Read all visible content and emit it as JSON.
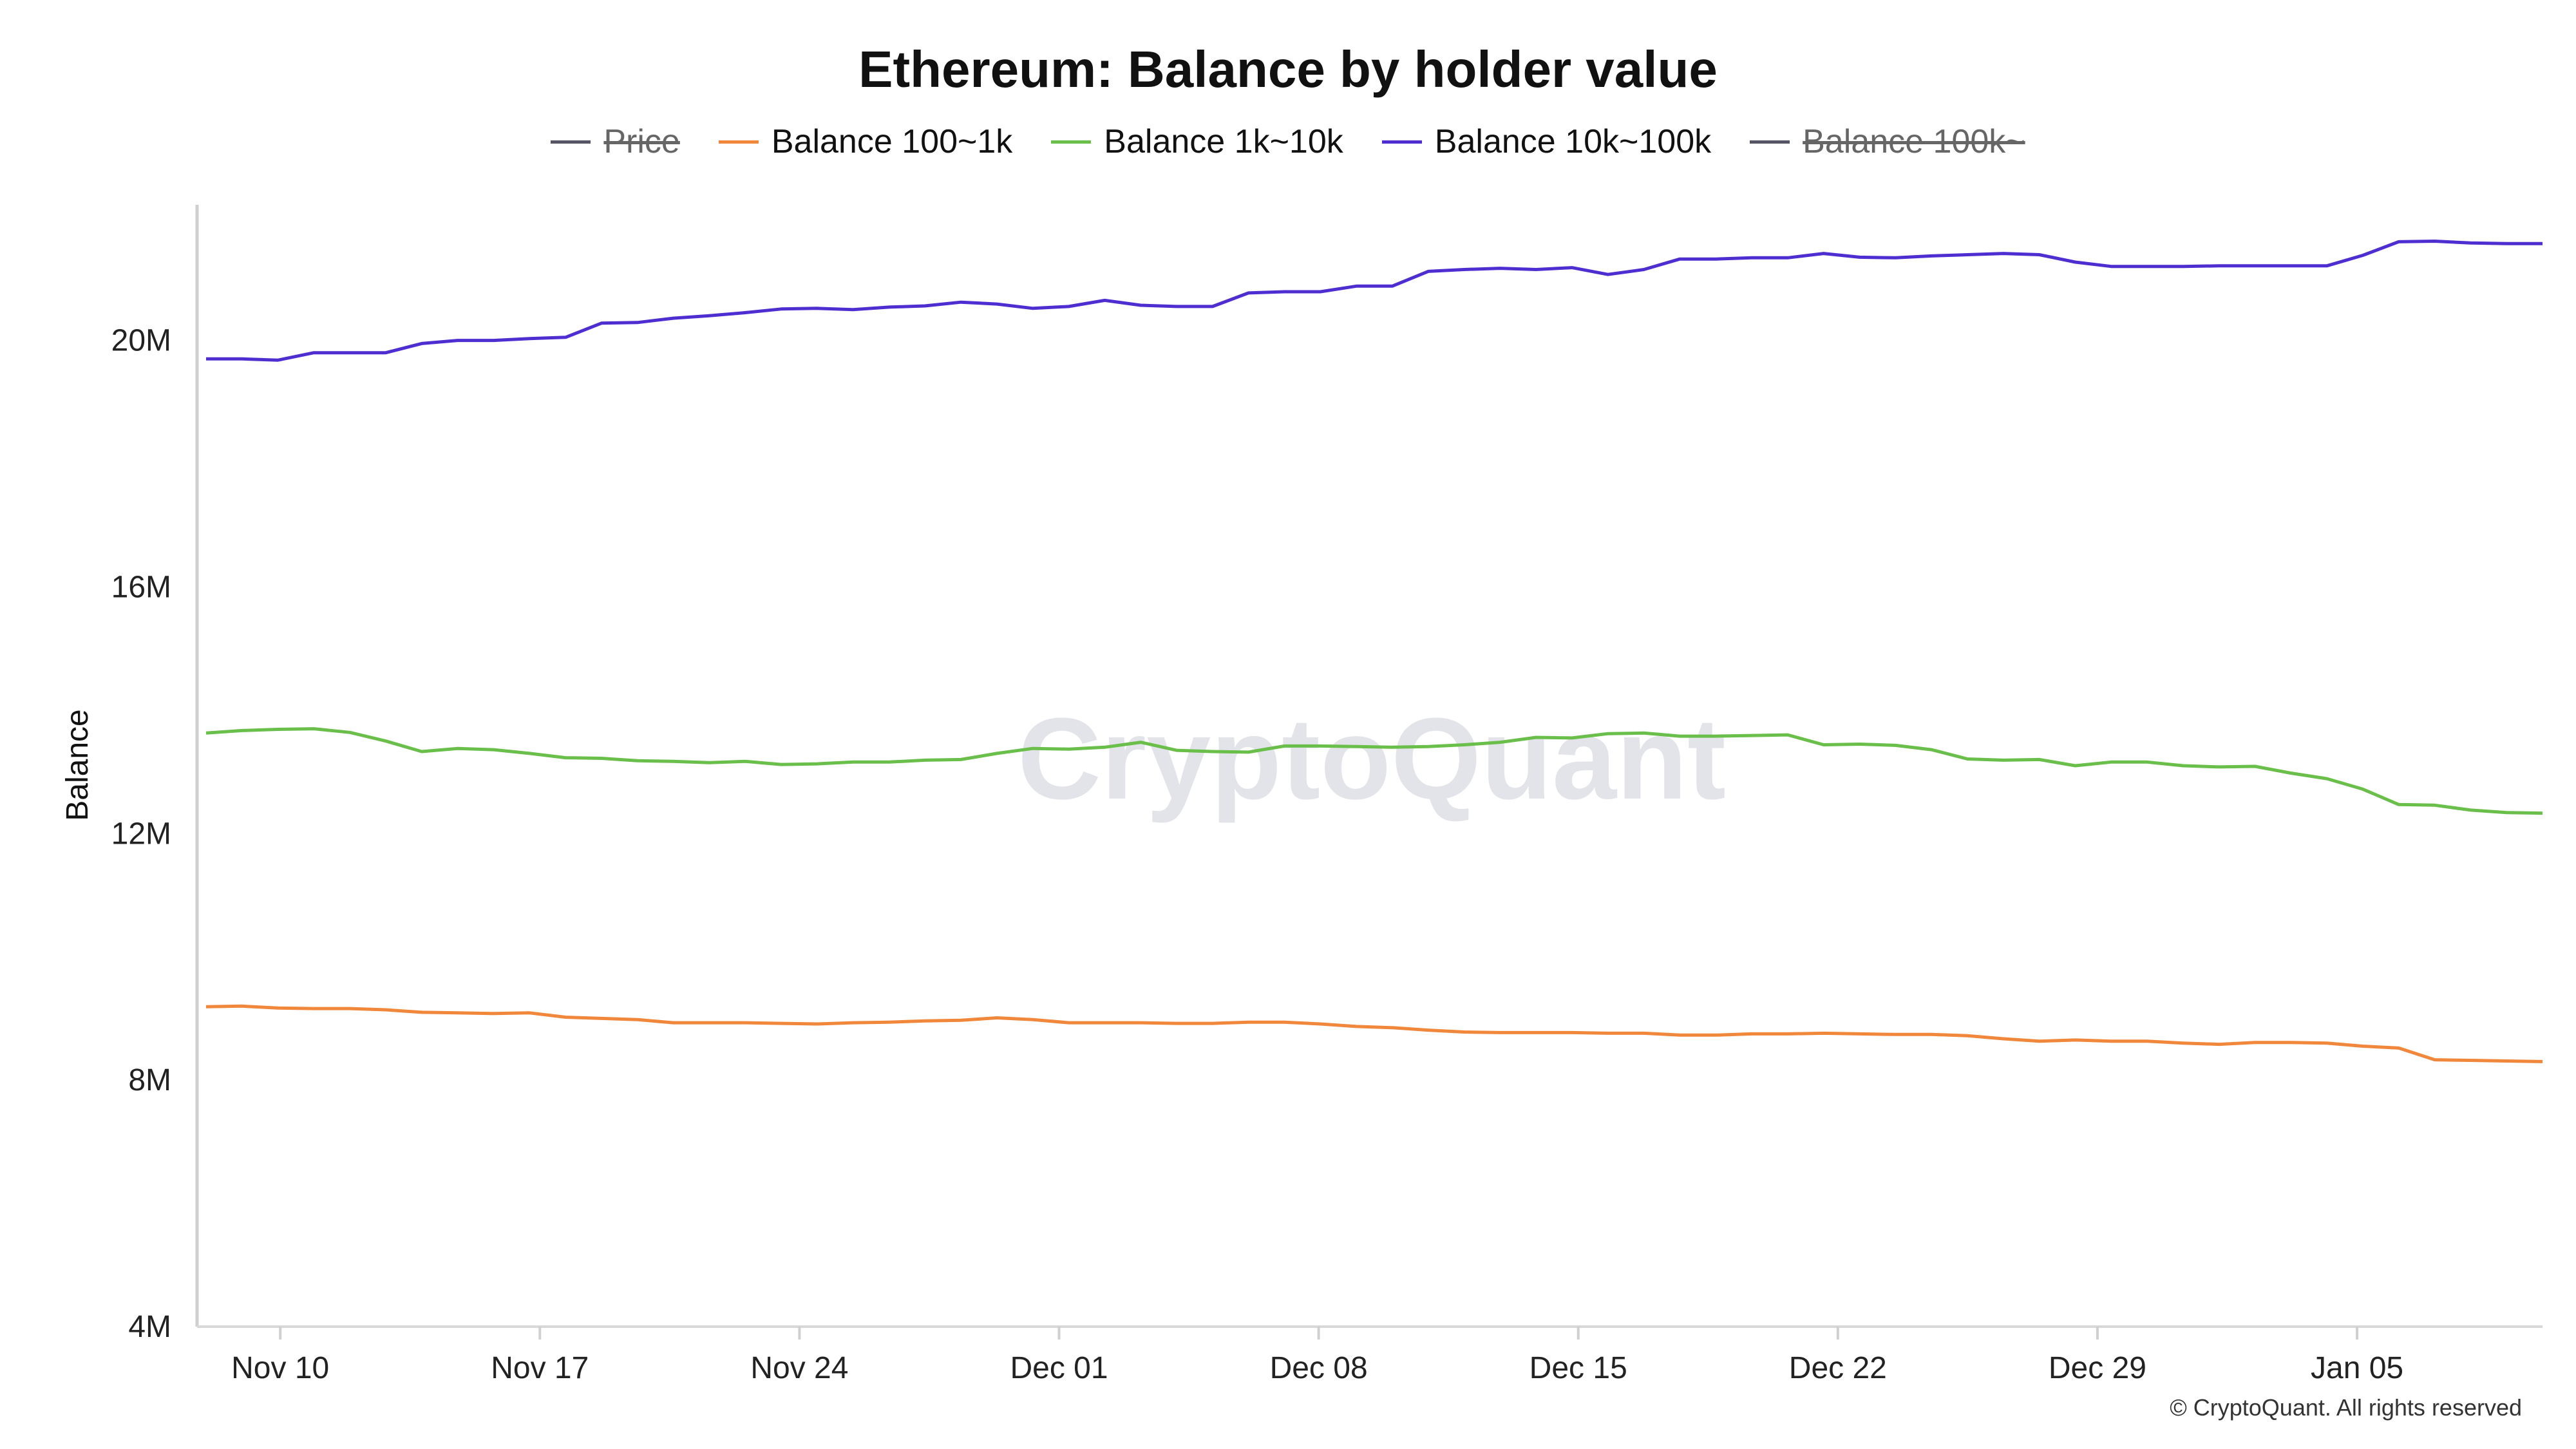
{
  "chart_data": {
    "type": "line",
    "title": "Ethereum: Balance by holder value",
    "ylabel": "Balance",
    "xlabel": "",
    "ylim": [
      4000000,
      22200000
    ],
    "y_ticks": [
      {
        "value": 4000000,
        "label": "4M"
      },
      {
        "value": 8000000,
        "label": "8M"
      },
      {
        "value": 12000000,
        "label": "12M"
      },
      {
        "value": 16000000,
        "label": "16M"
      },
      {
        "value": 20000000,
        "label": "20M"
      }
    ],
    "x_start_date": "2024-11-08",
    "x_end_date": "2025-01-10",
    "x_ticks": [
      {
        "date": "2024-11-10",
        "label": "Nov 10"
      },
      {
        "date": "2024-11-17",
        "label": "Nov 17"
      },
      {
        "date": "2024-11-24",
        "label": "Nov 24"
      },
      {
        "date": "2024-12-01",
        "label": "Dec 01"
      },
      {
        "date": "2024-12-08",
        "label": "Dec 08"
      },
      {
        "date": "2024-12-15",
        "label": "Dec 15"
      },
      {
        "date": "2024-12-22",
        "label": "Dec 22"
      },
      {
        "date": "2024-12-29",
        "label": "Dec 29"
      },
      {
        "date": "2025-01-05",
        "label": "Jan 05"
      }
    ],
    "legend_position": "top-center",
    "grid": false,
    "series": [
      {
        "name": "Price",
        "color": "#555566",
        "hidden": true,
        "values": []
      },
      {
        "name": "Balance 100~1k",
        "color": "#f0873a",
        "hidden": false,
        "values": [
          9190000,
          9200000,
          9170000,
          9160000,
          9160000,
          9140000,
          9100000,
          9090000,
          9080000,
          9090000,
          9020000,
          9000000,
          8980000,
          8930000,
          8930000,
          8930000,
          8920000,
          8910000,
          8930000,
          8940000,
          8960000,
          8970000,
          9010000,
          8980000,
          8930000,
          8930000,
          8930000,
          8920000,
          8920000,
          8940000,
          8940000,
          8910000,
          8870000,
          8850000,
          8810000,
          8780000,
          8770000,
          8770000,
          8770000,
          8760000,
          8760000,
          8730000,
          8730000,
          8750000,
          8750000,
          8760000,
          8750000,
          8740000,
          8740000,
          8720000,
          8670000,
          8630000,
          8650000,
          8630000,
          8630000,
          8600000,
          8580000,
          8610000,
          8610000,
          8600000,
          8550000,
          8520000,
          8330000,
          8320000,
          8310000,
          8300000
        ]
      },
      {
        "name": "Balance 1k~10k",
        "color": "#6abf4b",
        "hidden": false,
        "values": [
          13630000,
          13670000,
          13690000,
          13700000,
          13640000,
          13500000,
          13330000,
          13380000,
          13360000,
          13300000,
          13230000,
          13220000,
          13180000,
          13170000,
          13150000,
          13170000,
          13120000,
          13130000,
          13160000,
          13160000,
          13190000,
          13200000,
          13300000,
          13380000,
          13370000,
          13400000,
          13480000,
          13350000,
          13330000,
          13320000,
          13420000,
          13420000,
          13410000,
          13400000,
          13410000,
          13440000,
          13480000,
          13560000,
          13550000,
          13620000,
          13630000,
          13580000,
          13580000,
          13590000,
          13600000,
          13440000,
          13450000,
          13430000,
          13360000,
          13210000,
          13190000,
          13200000,
          13100000,
          13160000,
          13160000,
          13100000,
          13080000,
          13090000,
          12980000,
          12890000,
          12720000,
          12470000,
          12460000,
          12380000,
          12340000,
          12330000
        ]
      },
      {
        "name": "Balance 10k~100k",
        "color": "#4f2ed1",
        "hidden": false,
        "values": [
          19700000,
          19700000,
          19680000,
          19800000,
          19800000,
          19800000,
          19950000,
          20000000,
          20000000,
          20030000,
          20050000,
          20280000,
          20290000,
          20360000,
          20400000,
          20450000,
          20510000,
          20520000,
          20500000,
          20540000,
          20560000,
          20620000,
          20590000,
          20520000,
          20550000,
          20650000,
          20570000,
          20550000,
          20550000,
          20770000,
          20790000,
          20790000,
          20880000,
          20880000,
          21120000,
          21150000,
          21170000,
          21150000,
          21180000,
          21070000,
          21150000,
          21320000,
          21320000,
          21340000,
          21340000,
          21410000,
          21350000,
          21340000,
          21370000,
          21390000,
          21410000,
          21390000,
          21270000,
          21200000,
          21200000,
          21200000,
          21210000,
          21210000,
          21210000,
          21210000,
          21380000,
          21600000,
          21610000,
          21580000,
          21570000,
          21570000
        ]
      },
      {
        "name": "Balance 100k~",
        "color": "#555566",
        "hidden": true,
        "values": []
      }
    ]
  },
  "watermark": "CryptoQuant",
  "copyright": "© CryptoQuant. All rights reserved"
}
